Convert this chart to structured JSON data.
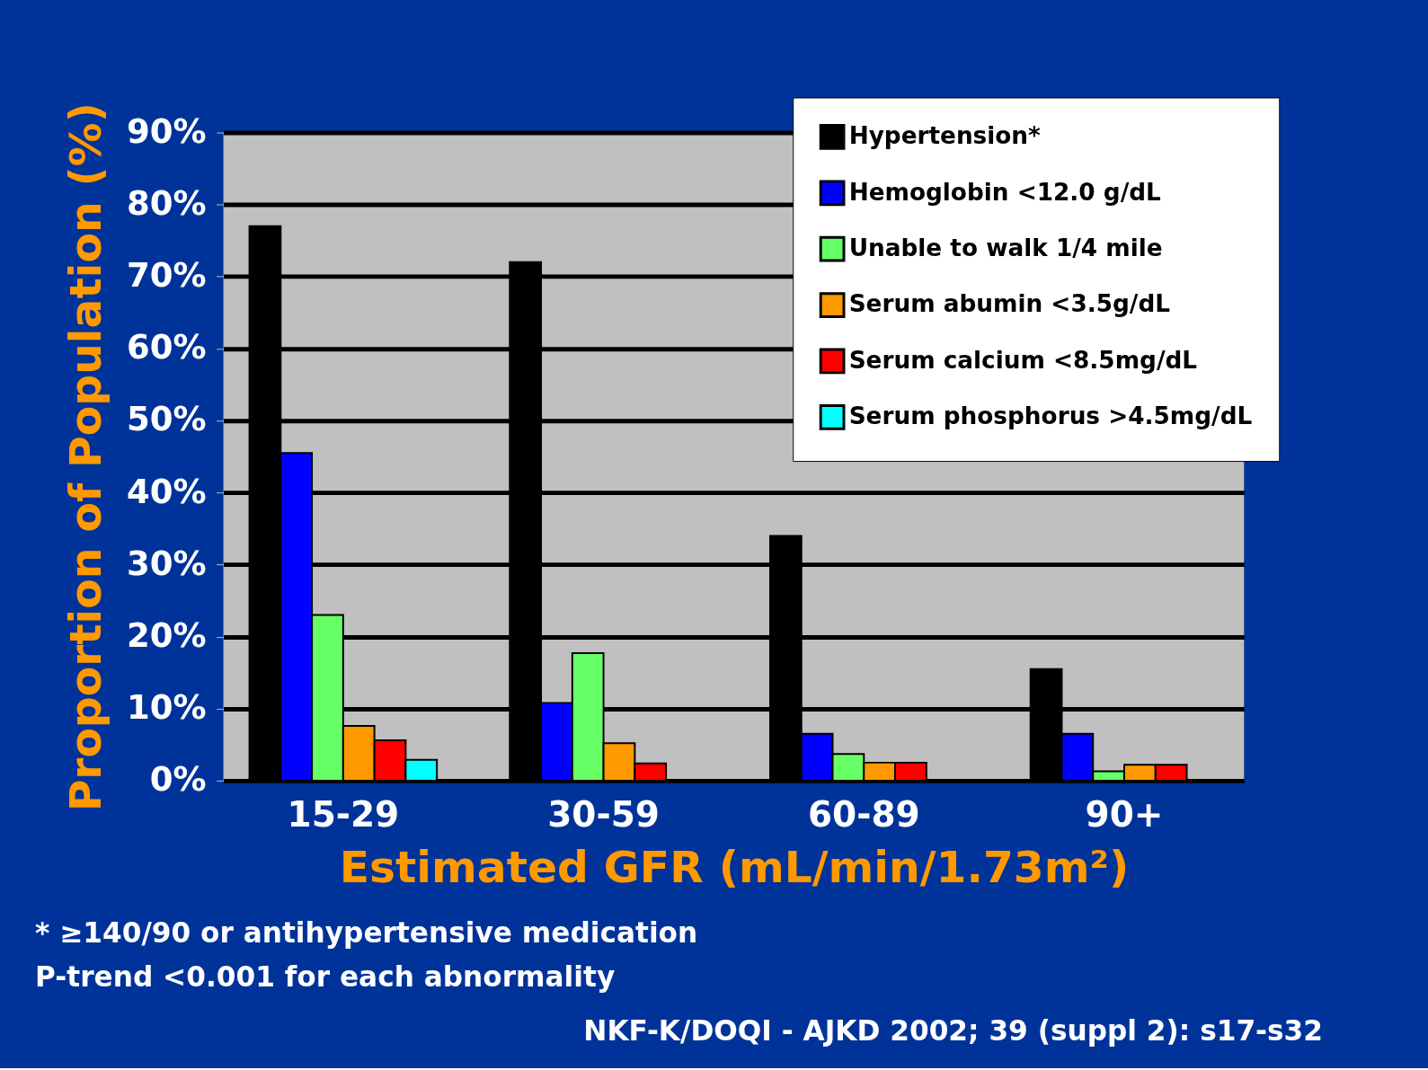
{
  "chart_data": {
    "type": "bar",
    "xlabel": "Estimated GFR (mL/min/1.73m²)",
    "ylabel": "Proportion of Population (%)",
    "categories": [
      "15-29",
      "30-59",
      "60-89",
      "90+"
    ],
    "series": [
      {
        "name": "Hypertension*",
        "color": "#000000",
        "values": [
          77,
          72,
          34,
          15.5
        ]
      },
      {
        "name": "Hemoglobin <12.0 g/dL",
        "color": "#0000ff",
        "values": [
          45.5,
          10.8,
          6.5,
          6.5
        ]
      },
      {
        "name": "Unable to walk 1/4 mile",
        "color": "#66ff66",
        "values": [
          23,
          17.7,
          3.7,
          1.3
        ]
      },
      {
        "name": "Serum abumin <3.5g/dL",
        "color": "#ff9900",
        "values": [
          7.6,
          5.2,
          2.5,
          2.2
        ]
      },
      {
        "name": "Serum calcium <8.5mg/dL",
        "color": "#ff0000",
        "values": [
          5.6,
          2.4,
          2.5,
          2.2
        ]
      },
      {
        "name": "Serum phosphorus >4.5mg/dL",
        "color": "#00ffff",
        "values": [
          2.9,
          null,
          null,
          null
        ]
      }
    ],
    "ylim": [
      0,
      90
    ],
    "yticks": [
      {
        "value": 0,
        "label": "0%"
      },
      {
        "value": 10,
        "label": "10%"
      },
      {
        "value": 20,
        "label": "20%"
      },
      {
        "value": 30,
        "label": "30%"
      },
      {
        "value": 40,
        "label": "40%"
      },
      {
        "value": 50,
        "label": "50%"
      },
      {
        "value": 60,
        "label": "60%"
      },
      {
        "value": 70,
        "label": "70%"
      },
      {
        "value": 80,
        "label": "80%"
      },
      {
        "value": 90,
        "label": "90%"
      }
    ],
    "grid": "y",
    "legend": "top right",
    "annotations": [
      "* ≥140/90 or antihypertensive medication",
      "P-trend <0.001 for each abnormality",
      "NKF-K/DOQI - AJKD 2002; 39 (suppl 2): s17-s32"
    ]
  }
}
